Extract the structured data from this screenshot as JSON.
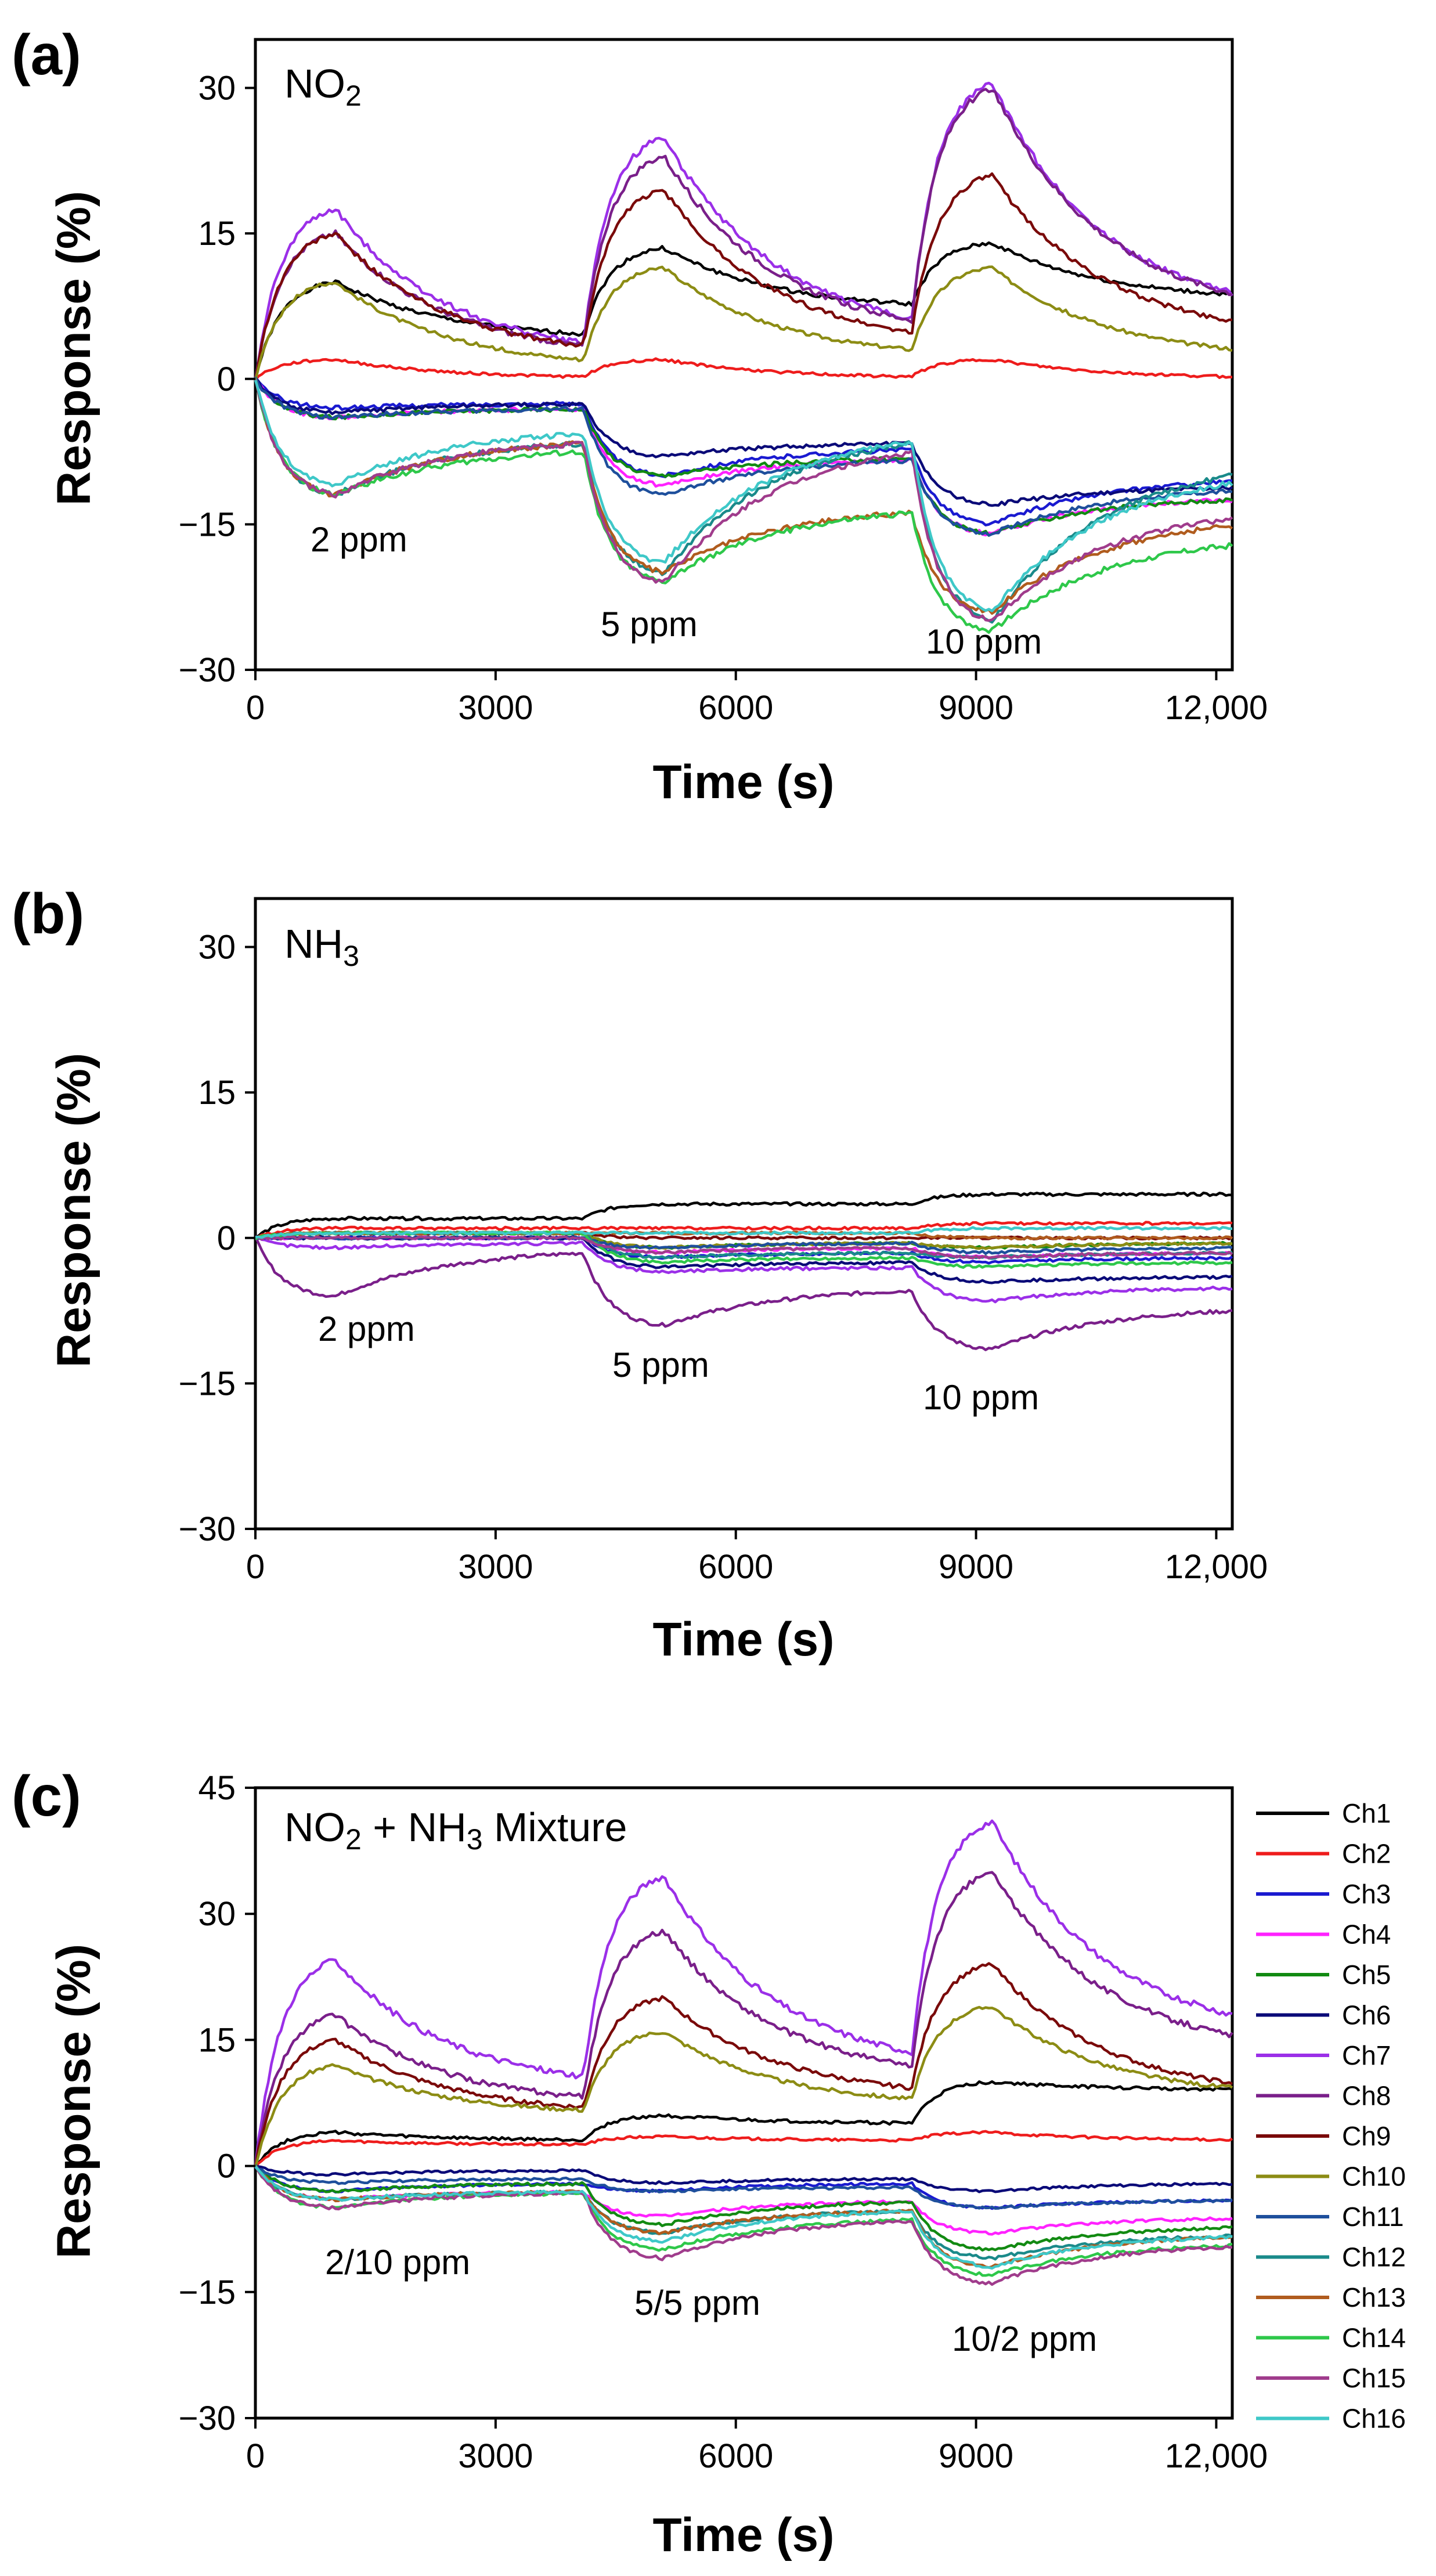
{
  "chart_data": [
    {
      "type": "line",
      "panel_label": "(a)",
      "title": "NO2",
      "xlabel": "Time (s)",
      "ylabel": "Response (%)",
      "xlim": [
        0,
        12200
      ],
      "ylim": [
        -30,
        35
      ],
      "xticks": [
        0,
        3000,
        6000,
        9000,
        12000
      ],
      "xtick_labels": [
        "0",
        "3000",
        "6000",
        "9000",
        "12,000"
      ],
      "yticks": [
        30,
        15,
        0,
        -15,
        -30
      ],
      "ytick_labels": [
        "30",
        "15",
        "0",
        "−15",
        "−30"
      ],
      "annotations": [
        {
          "text": "2 ppm",
          "x": 1700,
          "y": -16.5
        },
        {
          "text": "5 ppm",
          "x": 4800,
          "y": -25.5
        },
        {
          "text": "10 ppm",
          "x": 9100,
          "y": -27
        }
      ],
      "exposure_windows": [
        [
          0,
          1000
        ],
        [
          4100,
          5100
        ],
        [
          8200,
          9200
        ]
      ],
      "series": [
        {
          "name": "Ch1",
          "peaks": [
            10,
            13.5,
            14
          ],
          "base": [
            4,
            7,
            8
          ]
        },
        {
          "name": "Ch2",
          "peaks": [
            2,
            2,
            2
          ],
          "base": [
            0,
            0,
            0
          ]
        },
        {
          "name": "Ch3",
          "peaks": [
            -3,
            -10,
            -15
          ],
          "base": [
            -2.5,
            -7,
            -10
          ]
        },
        {
          "name": "Ch4",
          "peaks": [
            -4,
            -11,
            -16
          ],
          "base": [
            -3,
            -8,
            -12
          ]
        },
        {
          "name": "Ch5",
          "peaks": [
            -4,
            -10,
            -16
          ],
          "base": [
            -3,
            -8,
            -12
          ]
        },
        {
          "name": "Ch6",
          "peaks": [
            -3.5,
            -8,
            -13
          ],
          "base": [
            -2.5,
            -6.5,
            -11
          ]
        },
        {
          "name": "Ch7",
          "peaks": [
            17.5,
            25,
            30.5
          ],
          "base": [
            2,
            4,
            6
          ]
        },
        {
          "name": "Ch8",
          "peaks": [
            15,
            23,
            30
          ],
          "base": [
            2,
            4,
            6
          ]
        },
        {
          "name": "Ch9",
          "peaks": [
            15,
            19.5,
            21
          ],
          "base": [
            2,
            3,
            4
          ]
        },
        {
          "name": "Ch10",
          "peaks": [
            10,
            11.5,
            11.5
          ],
          "base": [
            1,
            2,
            2
          ]
        },
        {
          "name": "Ch11",
          "peaks": [
            -4,
            -12,
            -16
          ],
          "base": [
            -3,
            -8,
            -11
          ]
        },
        {
          "name": "Ch12",
          "peaks": [
            -12,
            -20,
            -25
          ],
          "base": [
            -6,
            -5,
            -8
          ]
        },
        {
          "name": "Ch13",
          "peaks": [
            -12,
            -20,
            -24
          ],
          "base": [
            -6,
            -13,
            -14
          ]
        },
        {
          "name": "Ch14",
          "peaks": [
            -12,
            -21,
            -26
          ],
          "base": [
            -7,
            -13,
            -16
          ]
        },
        {
          "name": "Ch15",
          "peaks": [
            -12,
            -21,
            -25
          ],
          "base": [
            -6,
            -6,
            -13
          ]
        },
        {
          "name": "Ch16",
          "peaks": [
            -11,
            -19,
            -24
          ],
          "base": [
            -5,
            -5,
            -9
          ]
        }
      ]
    },
    {
      "type": "line",
      "panel_label": "(b)",
      "title": "NH3",
      "xlabel": "Time (s)",
      "ylabel": "Response (%)",
      "xlim": [
        0,
        12200
      ],
      "ylim": [
        -30,
        35
      ],
      "xticks": [
        0,
        3000,
        6000,
        9000,
        12000
      ],
      "xtick_labels": [
        "0",
        "3000",
        "6000",
        "9000",
        "12,000"
      ],
      "yticks": [
        30,
        15,
        0,
        -15,
        -30
      ],
      "ytick_labels": [
        "30",
        "15",
        "0",
        "−15",
        "−30"
      ],
      "annotations": [
        {
          "text": "2 ppm",
          "x": 1500,
          "y": -10
        },
        {
          "text": "5 ppm",
          "x": 4900,
          "y": -14
        },
        {
          "text": "10 ppm",
          "x": 9300,
          "y": -17
        }
      ],
      "exposure_windows": [
        [
          0,
          1000
        ],
        [
          4100,
          5100
        ],
        [
          8200,
          9200
        ]
      ],
      "series": [
        {
          "name": "Ch1",
          "peaks": [
            2,
            3.5,
            4.5
          ],
          "base": [
            2,
            3.5,
            4.5
          ]
        },
        {
          "name": "Ch2",
          "peaks": [
            1,
            1,
            1.5
          ],
          "base": [
            1,
            1,
            1.5
          ]
        },
        {
          "name": "Ch3",
          "peaks": [
            0,
            -2,
            -2.5
          ],
          "base": [
            0,
            -1.5,
            -2
          ]
        },
        {
          "name": "Ch4",
          "peaks": [
            0,
            -1.5,
            -2
          ],
          "base": [
            0,
            -1,
            -1.5
          ]
        },
        {
          "name": "Ch5",
          "peaks": [
            0.5,
            -1,
            -1
          ],
          "base": [
            0.5,
            -0.5,
            -0.5
          ]
        },
        {
          "name": "Ch6",
          "peaks": [
            0,
            -3,
            -4.5
          ],
          "base": [
            0,
            -2.5,
            -4
          ]
        },
        {
          "name": "Ch7",
          "peaks": [
            -1,
            -3.5,
            -6.5
          ],
          "base": [
            -0.5,
            -3,
            -5
          ]
        },
        {
          "name": "Ch8",
          "peaks": [
            -6,
            -9,
            -11.5
          ],
          "base": [
            -1,
            -5,
            -7
          ]
        },
        {
          "name": "Ch9",
          "peaks": [
            0.5,
            0,
            0
          ],
          "base": [
            0.5,
            0,
            0
          ]
        },
        {
          "name": "Ch10",
          "peaks": [
            0.5,
            -1,
            -1
          ],
          "base": [
            0.5,
            -0.5,
            -0.5
          ]
        },
        {
          "name": "Ch11",
          "peaks": [
            0,
            -1,
            -1.5
          ],
          "base": [
            0,
            -0.5,
            -1
          ]
        },
        {
          "name": "Ch12",
          "peaks": [
            0.5,
            -2,
            -2
          ],
          "base": [
            0.5,
            -1.5,
            -1.5
          ]
        },
        {
          "name": "Ch13",
          "peaks": [
            0.5,
            0.5,
            0
          ],
          "base": [
            0.5,
            0.5,
            0
          ]
        },
        {
          "name": "Ch14",
          "peaks": [
            0.5,
            -2.5,
            -3
          ],
          "base": [
            0.5,
            -2,
            -2.5
          ]
        },
        {
          "name": "Ch15",
          "peaks": [
            0,
            -1.5,
            -2
          ],
          "base": [
            0,
            -1,
            -1.5
          ]
        },
        {
          "name": "Ch16",
          "peaks": [
            0.5,
            0.5,
            1
          ],
          "base": [
            0.5,
            0.5,
            1
          ]
        }
      ]
    },
    {
      "type": "line",
      "panel_label": "(c)",
      "title": "NO2 + NH3 Mixture",
      "xlabel": "Time (s)",
      "ylabel": "Response (%)",
      "xlim": [
        0,
        12200
      ],
      "ylim": [
        -30,
        45
      ],
      "xticks": [
        0,
        3000,
        6000,
        9000,
        12000
      ],
      "xtick_labels": [
        "0",
        "3000",
        "6000",
        "9000",
        "12,000"
      ],
      "yticks": [
        45,
        30,
        15,
        0,
        -15,
        -30
      ],
      "ytick_labels": [
        "45",
        "30",
        "15",
        "0",
        "−15",
        "−30"
      ],
      "annotations": [
        {
          "text": "2/10 ppm",
          "x": 1900,
          "y": -13
        },
        {
          "text": "5/5 ppm",
          "x": 5300,
          "y": -18
        },
        {
          "text": "10/2 ppm",
          "x": 9500,
          "y": -21
        }
      ],
      "exposure_windows": [
        [
          0,
          1000
        ],
        [
          4100,
          5100
        ],
        [
          8200,
          9200
        ]
      ],
      "series": [
        {
          "name": "Ch1",
          "peaks": [
            4,
            6,
            10
          ],
          "base": [
            3,
            5,
            9
          ]
        },
        {
          "name": "Ch2",
          "peaks": [
            3,
            3.5,
            4
          ],
          "base": [
            2.5,
            3,
            3
          ]
        },
        {
          "name": "Ch3",
          "peaks": [
            -3,
            -3,
            -5
          ],
          "base": [
            -2,
            -2,
            -4
          ]
        },
        {
          "name": "Ch4",
          "peaks": [
            -4,
            -6,
            -8
          ],
          "base": [
            -3,
            -4,
            -6
          ]
        },
        {
          "name": "Ch5",
          "peaks": [
            -3,
            -7,
            -10
          ],
          "base": [
            -2,
            -4,
            -7
          ]
        },
        {
          "name": "Ch6",
          "peaks": [
            -1,
            -2,
            -3
          ],
          "base": [
            -0.5,
            -1.5,
            -2
          ]
        },
        {
          "name": "Ch7",
          "peaks": [
            24.5,
            34.5,
            41
          ],
          "base": [
            9,
            11,
            15
          ]
        },
        {
          "name": "Ch8",
          "peaks": [
            18,
            28,
            35
          ],
          "base": [
            7,
            10,
            13
          ]
        },
        {
          "name": "Ch9",
          "peaks": [
            15,
            20,
            24
          ],
          "base": [
            6,
            8,
            8
          ]
        },
        {
          "name": "Ch10",
          "peaks": [
            12,
            16,
            19
          ],
          "base": [
            6,
            7,
            8
          ]
        },
        {
          "name": "Ch11",
          "peaks": [
            -2,
            -3,
            -5
          ],
          "base": [
            -1.5,
            -2.5,
            -4
          ]
        },
        {
          "name": "Ch12",
          "peaks": [
            -4,
            -8,
            -11
          ],
          "base": [
            -3,
            -5,
            -8
          ]
        },
        {
          "name": "Ch13",
          "peaks": [
            -4,
            -8,
            -12
          ],
          "base": [
            -3,
            -5,
            -8
          ]
        },
        {
          "name": "Ch14",
          "peaks": [
            -5,
            -10,
            -13
          ],
          "base": [
            -3,
            -6,
            -9
          ]
        },
        {
          "name": "Ch15",
          "peaks": [
            -5,
            -11,
            -14
          ],
          "base": [
            -3,
            -6,
            -9
          ]
        },
        {
          "name": "Ch16",
          "peaks": [
            -4,
            -9,
            -12
          ],
          "base": [
            -3,
            -5,
            -8
          ]
        }
      ]
    }
  ],
  "legend": {
    "entries": [
      "Ch1",
      "Ch2",
      "Ch3",
      "Ch4",
      "Ch5",
      "Ch6",
      "Ch7",
      "Ch8",
      "Ch9",
      "Ch10",
      "Ch11",
      "Ch12",
      "Ch13",
      "Ch14",
      "Ch15",
      "Ch16"
    ],
    "colors": [
      "#000000",
      "#ee1c1c",
      "#1a1ad0",
      "#ff22ff",
      "#128a12",
      "#0a0a78",
      "#9b2fe8",
      "#7a1f8a",
      "#7a0a0a",
      "#8c8c14",
      "#1e4f9c",
      "#1a8a8a",
      "#b05c1e",
      "#2ec84a",
      "#a03c8c",
      "#3ec8c8"
    ]
  }
}
